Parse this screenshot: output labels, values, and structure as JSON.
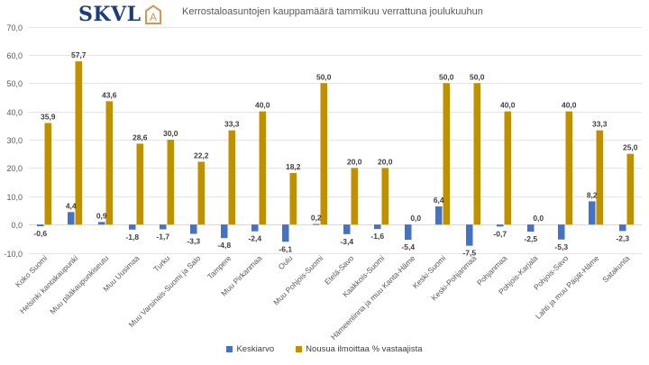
{
  "logo": {
    "text": "SKVL",
    "mark": "A"
  },
  "chart_data": {
    "type": "bar",
    "title": "Kerrostaloasuntojen kauppamäärä  tammikuu verrattuna joulukuuhun",
    "xlabel": "",
    "ylabel": "",
    "ylim": [
      -10,
      70
    ],
    "yticks": [
      -10,
      0,
      10,
      20,
      30,
      40,
      50,
      60,
      70
    ],
    "ytick_labels": [
      "-10,0",
      "0,0",
      "10,0",
      "20,0",
      "30,0",
      "40,0",
      "50,0",
      "60,0",
      "70,0"
    ],
    "grid": true,
    "legend_position": "bottom",
    "categories": [
      "Koko Suomi",
      "Helsinki kantakaupunki",
      "Muu pääkaupunkiseutu",
      "Muu Uusimaa",
      "Turku",
      "Muu Varsinais-Suomi ja Salo",
      "Tampere",
      "Muu Pirkanmaa",
      "Oulu",
      "Muu Pohjois-Suomi",
      "Etelä-Savo",
      "Kaakkois-Suomi",
      "Hämeenlinna ja muu Kanta-Häme",
      "Keski-Suomi",
      "Keski-Pohjanmaa",
      "Pohjanmaa",
      "Pohjois-Karjala",
      "Pohjois-Savo",
      "Lahti ja muu Päijät-Häme",
      "Satakunta"
    ],
    "series": [
      {
        "name": "Keskiarvo",
        "color": "#4472c4",
        "values": [
          -0.6,
          4.4,
          0.9,
          -1.8,
          -1.7,
          -3.3,
          -4.8,
          -2.4,
          -6.1,
          0.2,
          -3.4,
          -1.6,
          -5.4,
          6.4,
          -7.5,
          -0.7,
          -2.5,
          -5.3,
          8.2,
          -2.3
        ],
        "labels": [
          "-0,6",
          "4,4",
          "0,9",
          "-1,8",
          "-1,7",
          "-3,3",
          "-4,8",
          "-2,4",
          "-6,1",
          "0,2",
          "-3,4",
          "-1,6",
          "-5,4",
          "6,4",
          "-7,5",
          "-0,7",
          "-2,5",
          "-5,3",
          "8,2",
          "-2,3"
        ]
      },
      {
        "name": "Nousua ilmoittaa % vastaajista",
        "color": "#bf9000",
        "values": [
          35.9,
          57.7,
          43.6,
          28.6,
          30.0,
          22.2,
          33.3,
          40.0,
          18.2,
          50.0,
          20.0,
          20.0,
          0.0,
          50.0,
          50.0,
          40.0,
          0.0,
          40.0,
          33.3,
          25.0
        ],
        "labels": [
          "35,9",
          "57,7",
          "43,6",
          "28,6",
          "30,0",
          "22,2",
          "33,3",
          "40,0",
          "18,2",
          "50,0",
          "20,0",
          "20,0",
          "0,0",
          "50,0",
          "50,0",
          "40,0",
          "0,0",
          "40,0",
          "33,3",
          "25,0"
        ]
      }
    ]
  }
}
